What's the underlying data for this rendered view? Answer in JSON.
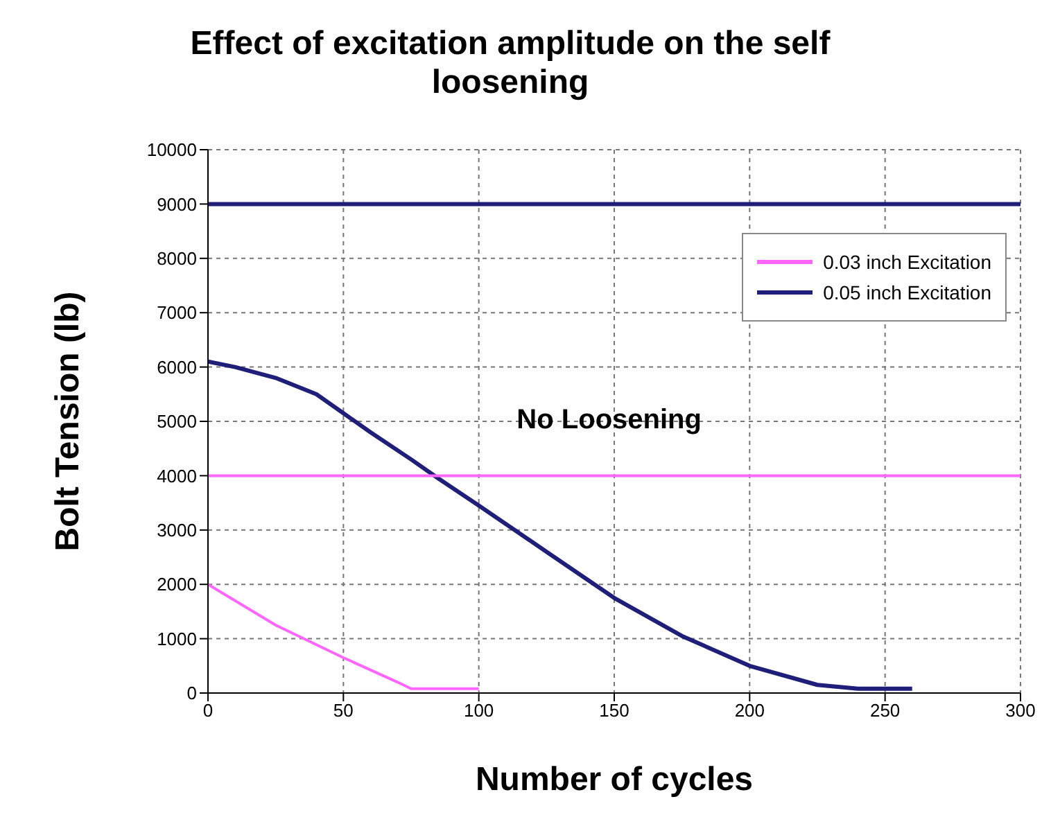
{
  "chart_data": {
    "type": "line",
    "title": "Effect of excitation amplitude on the self loosening",
    "xlabel": "Number of cycles",
    "ylabel": "Bolt Tension (lb)",
    "xlim": [
      0,
      300
    ],
    "xticks": [
      0,
      50,
      100,
      150,
      200,
      250,
      300
    ],
    "ylim": [
      0,
      10000
    ],
    "yticks": [
      0,
      1000,
      2000,
      3000,
      4000,
      5000,
      6000,
      7000,
      8000,
      9000,
      10000
    ],
    "grid": true,
    "legend": "top right",
    "marker": "none",
    "line_style": "solid",
    "annotations": [
      "No Loosening"
    ],
    "series": [
      {
        "name": "0.03 inch Excitation",
        "color": "#ff66ff",
        "x": [
          0,
          25,
          50,
          70,
          75,
          100
        ],
        "values": [
          2000,
          1250,
          650,
          200,
          80,
          80
        ]
      },
      {
        "name": "0.05 inch Excitation",
        "color": "#1f1f7a",
        "x": [
          0,
          10,
          25,
          40,
          50,
          60,
          75,
          85,
          100,
          125,
          150,
          175,
          200,
          225,
          240,
          260
        ],
        "values": [
          6100,
          6000,
          5800,
          5500,
          5150,
          4800,
          4300,
          3950,
          3450,
          2600,
          1750,
          1050,
          500,
          150,
          80,
          80
        ]
      },
      {
        "color": "#ff66ff",
        "x": [
          0,
          300
        ],
        "values": [
          4000,
          4000
        ]
      },
      {
        "color": "#1f1f7a",
        "x": [
          0,
          300
        ],
        "values": [
          9000,
          9000
        ]
      }
    ]
  }
}
